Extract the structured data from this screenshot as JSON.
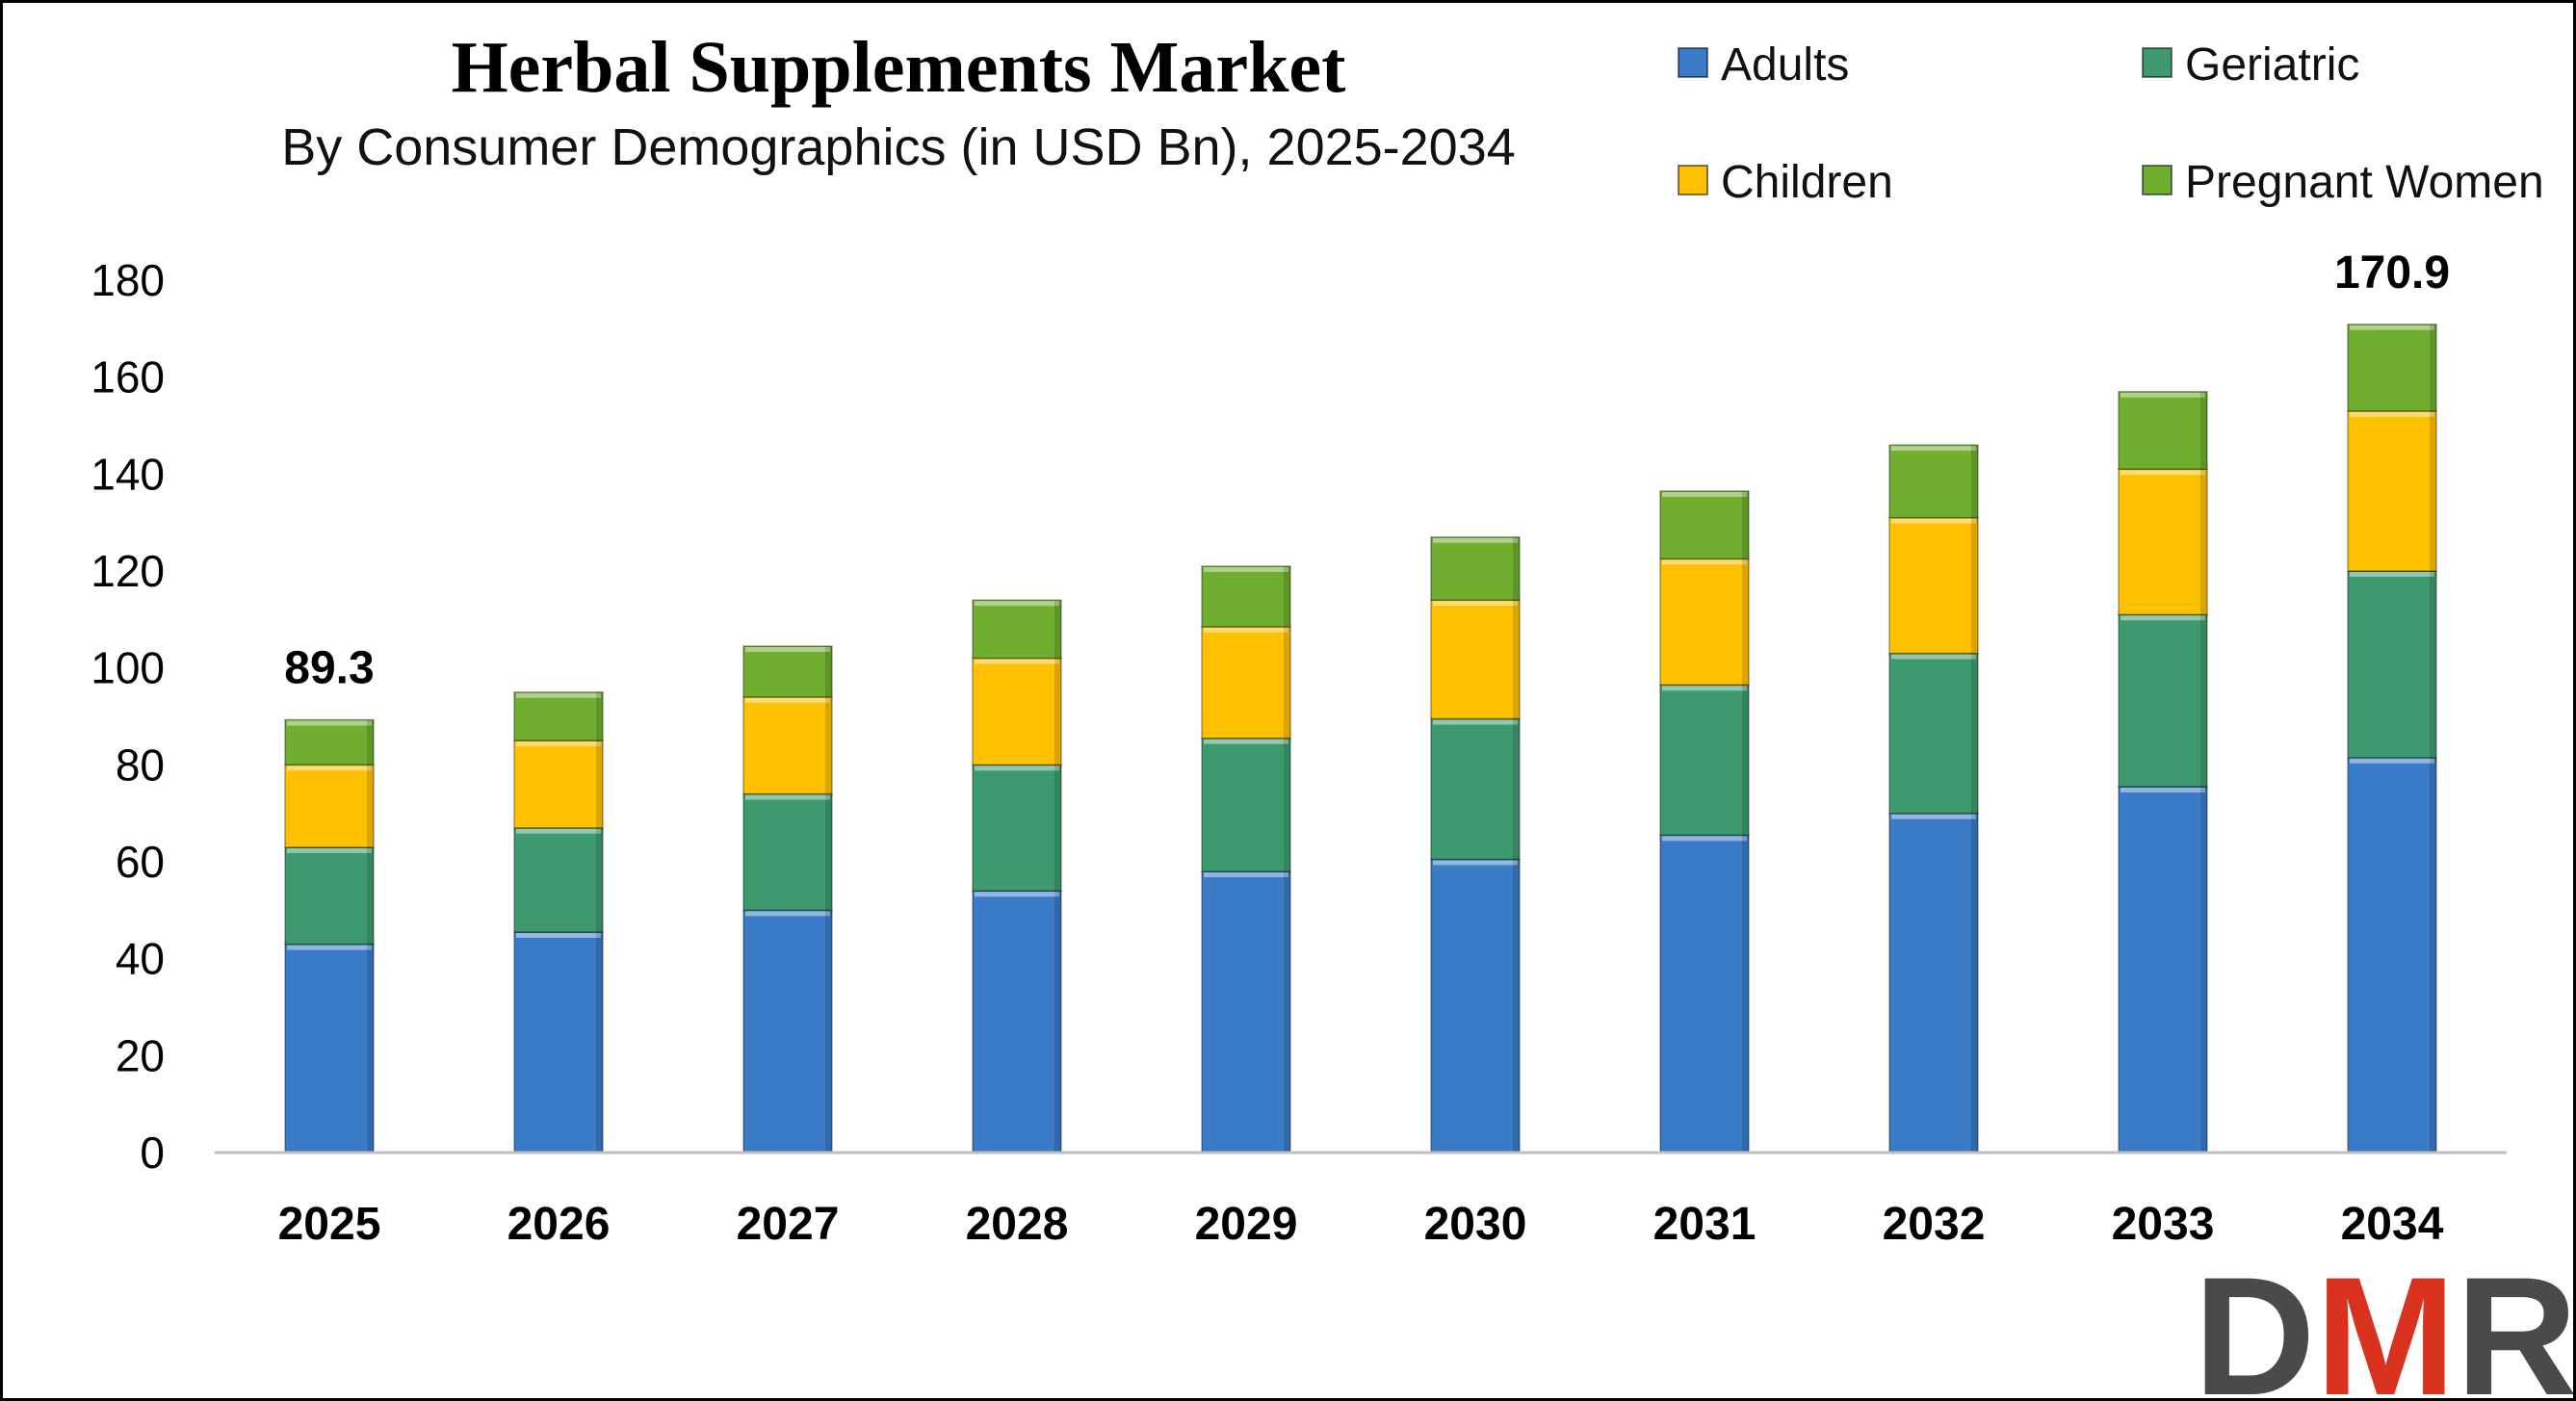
{
  "colors": {
    "adults": "#3a7bc8",
    "geriatric": "#3d9a6e",
    "children": "#ffc000",
    "pregnant_women": "#6fae2e",
    "logo_dark": "#4a4a4a",
    "logo_red": "#d9321f"
  },
  "chart_data": {
    "type": "bar",
    "stacked": true,
    "title": "Herbal Supplements Market",
    "subtitle": "By Consumer Demographics (in USD Bn), 2025-2034",
    "xlabel": "",
    "ylabel": "",
    "ylim": [
      0,
      180
    ],
    "yticks": [
      "0",
      "20",
      "40",
      "60",
      "80",
      "100",
      "120",
      "140",
      "160",
      "180"
    ],
    "grid": false,
    "legend_position": "top-right",
    "categories": [
      "2025",
      "2026",
      "2027",
      "2028",
      "2029",
      "2030",
      "2031",
      "2032",
      "2033",
      "2034"
    ],
    "series": [
      {
        "name": "Adults",
        "key": "adults",
        "values": [
          43,
          45.5,
          50,
          54,
          58,
          60.5,
          65.5,
          70,
          75.5,
          81.5
        ]
      },
      {
        "name": "Geriatric",
        "key": "geriatric",
        "values": [
          20,
          21.5,
          24,
          26,
          27.5,
          29,
          31,
          33,
          35.5,
          38.5
        ]
      },
      {
        "name": "Children",
        "key": "children",
        "values": [
          17,
          18,
          20,
          22,
          23,
          24.5,
          26,
          28,
          30,
          33
        ]
      },
      {
        "name": "Pregnant Women",
        "key": "pregnant_women",
        "values": [
          9.3,
          10,
          10.5,
          12,
          12.5,
          13,
          14,
          15,
          16,
          17.9
        ]
      }
    ],
    "annotations": [
      {
        "category": "2025",
        "text": "89.3"
      },
      {
        "category": "2034",
        "text": "170.9"
      }
    ]
  },
  "logo": {
    "text": "DMR"
  }
}
